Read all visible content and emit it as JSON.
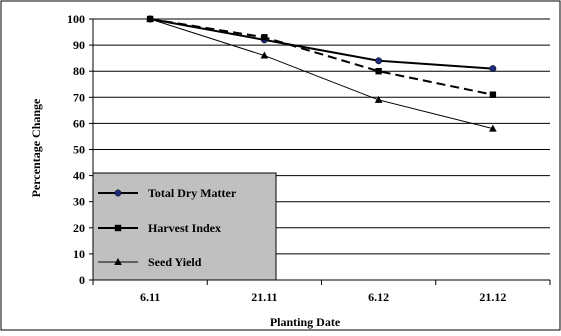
{
  "chart_data": {
    "type": "line",
    "title": "",
    "xlabel": "Planting Date",
    "ylabel": "Percentage Change",
    "categories": [
      "6.11",
      "21.11",
      "6.12",
      "21.12"
    ],
    "ylim": [
      0,
      100
    ],
    "yticks": [
      0,
      10,
      20,
      30,
      40,
      50,
      60,
      70,
      80,
      90,
      100
    ],
    "grid": "horizontal",
    "legend_position": "bottom-left",
    "series": [
      {
        "name": "Total Dry Matter",
        "values": [
          100,
          92,
          84,
          81
        ],
        "marker": "circle",
        "line": "solid-thick",
        "marker_color": "#1f2a7a"
      },
      {
        "name": "Harvest Index",
        "values": [
          100,
          93,
          80,
          71
        ],
        "marker": "square",
        "line": "dashed-thick",
        "marker_color": "#000000"
      },
      {
        "name": "Seed Yield",
        "values": [
          100,
          86,
          69,
          58
        ],
        "marker": "triangle",
        "line": "solid-thin",
        "marker_color": "#000000"
      }
    ],
    "colors": {
      "legend_background": "#c0c0c0",
      "line": "#000000",
      "grid": "#000000"
    }
  }
}
